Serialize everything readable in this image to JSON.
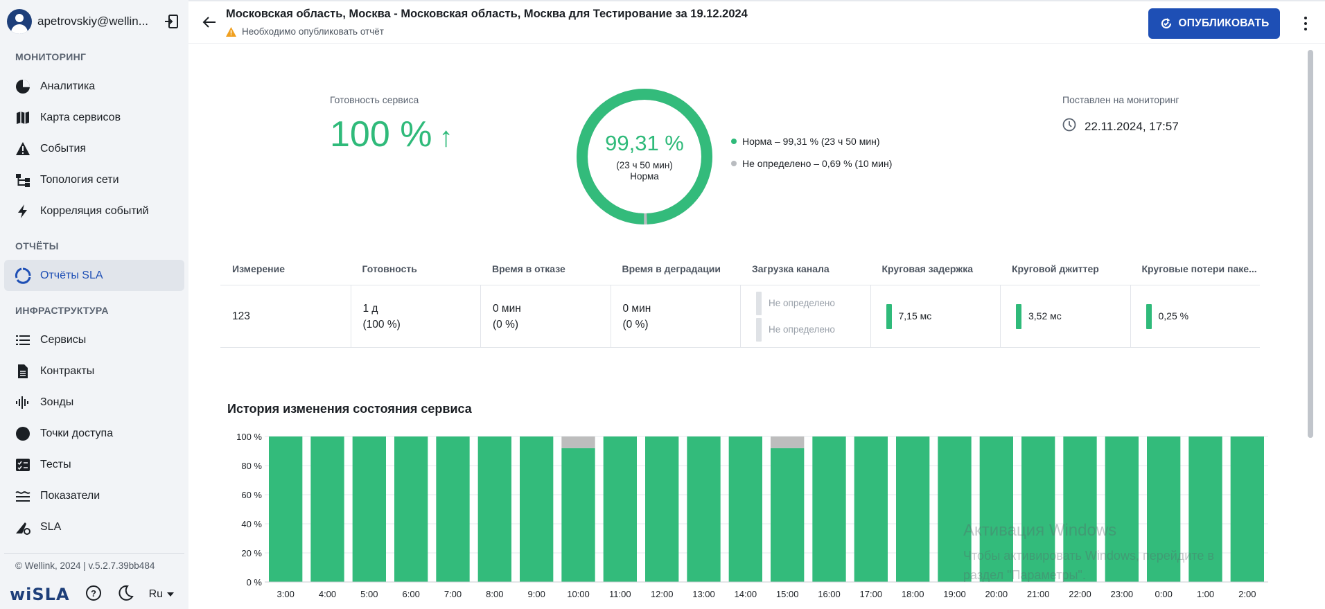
{
  "user": {
    "email": "apetrovskiy@wellin..."
  },
  "sidebar": {
    "sections": {
      "monitoring": "МОНИТОРИНГ",
      "reports": "ОТЧЁТЫ",
      "infrastructure": "ИНФРАСТРУКТУРА"
    },
    "monitoring_items": [
      "Аналитика",
      "Карта сервисов",
      "События",
      "Топология сети",
      "Корреляция событий"
    ],
    "reports_items": [
      "Отчёты SLA"
    ],
    "infra_items": [
      "Сервисы",
      "Контракты",
      "Зонды",
      "Точки доступа",
      "Тесты",
      "Показатели",
      "SLA"
    ],
    "copyright": "© Wellink, 2024 | v.5.2.7.39bb484",
    "brand": "wiSLA",
    "lang": "Ru"
  },
  "header": {
    "title": "Московская область, Москва - Московская область, Москва для Тестирование за 19.12.2024",
    "warning": "Необходимо опубликовать отчёт",
    "publish_label": "ОПУБЛИКОВАТЬ"
  },
  "summary": {
    "readiness_label": "Готовность сервиса",
    "readiness_value": "100 %",
    "readiness_arrow": "↑",
    "donut_value": "99,31 %",
    "donut_sub1": "(23 ч 50 мин)",
    "donut_sub2": "Норма",
    "donut_fraction": 0.9931,
    "legend": [
      {
        "text": "Норма – 99,31 % (23 ч 50 мин)",
        "color": "#2fba7a"
      },
      {
        "text": "Не определено – 0,69 % (10 мин)",
        "color": "#b9bcc0"
      }
    ],
    "monitor_label": "Поставлен на мониторинг",
    "monitor_value": "22.11.2024, 17:57"
  },
  "table": {
    "headers": [
      "Измерение",
      "Готовность",
      "Время в отказе",
      "Время в деградации",
      "Загрузка канала",
      "Круговая задержка",
      "Круговой джиттер",
      "Круговые потери паке..."
    ],
    "row": {
      "measure": "123",
      "readiness_1": "1 д",
      "readiness_2": "(100 %)",
      "failure_1": "0 мин",
      "failure_2": "(0 %)",
      "degradation_1": "0 мин",
      "degradation_2": "(0 %)",
      "load_1": "Не определено",
      "load_2": "Не определено",
      "delay": "7,15 мс",
      "jitter": "3,52 мс",
      "loss": "0,25 %"
    }
  },
  "chart_title": "История изменения состояния сервиса",
  "chart_data": {
    "type": "bar",
    "categories": [
      "3:00",
      "4:00",
      "5:00",
      "6:00",
      "7:00",
      "8:00",
      "9:00",
      "10:00",
      "11:00",
      "12:00",
      "13:00",
      "14:00",
      "15:00",
      "16:00",
      "17:00",
      "18:00",
      "19:00",
      "20:00",
      "21:00",
      "22:00",
      "23:00",
      "0:00",
      "1:00",
      "2:00"
    ],
    "series": [
      {
        "values": [
          100,
          100,
          100,
          100,
          100,
          100,
          100,
          92,
          100,
          100,
          100,
          100,
          92,
          100,
          100,
          100,
          100,
          100,
          100,
          100,
          100,
          100,
          100,
          100
        ],
        "color": "#33bb7b"
      },
      {
        "values": [
          0,
          0,
          0,
          0,
          0,
          0,
          0,
          8,
          0,
          0,
          0,
          0,
          8,
          0,
          0,
          0,
          0,
          0,
          0,
          0,
          0,
          0,
          0,
          0
        ],
        "color": "#bdbdbd"
      }
    ],
    "stacked": true,
    "yticks": [
      "0 %",
      "20 %",
      "40 %",
      "60 %",
      "80 %",
      "100 %"
    ],
    "ylim": [
      0,
      100
    ],
    "grid": true
  },
  "watermark": {
    "line1": "Активация Windows",
    "line2": "Чтобы активировать Windows, перейдите в",
    "line3": "раздел \"Параметры\"."
  }
}
